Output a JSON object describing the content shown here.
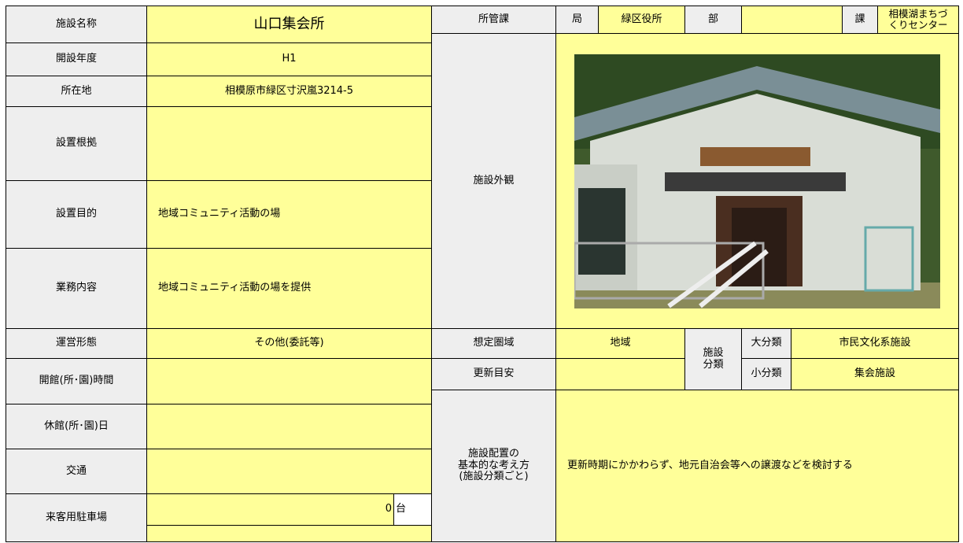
{
  "name": {
    "label": "施設名称",
    "value": "山口集会所"
  },
  "year": {
    "label": "開設年度",
    "value": "H1"
  },
  "address": {
    "label": "所在地",
    "value": "相模原市緑区寸沢嵐3214-5"
  },
  "basis": {
    "label": "設置根拠"
  },
  "purpose": {
    "label": "設置目的",
    "value": "地域コミュニティ活動の場"
  },
  "duties": {
    "label": "業務内容",
    "value": "地域コミュニティ活動の場を提供"
  },
  "operation": {
    "label": "運営形態",
    "value": "その他(委託等)"
  },
  "hours": {
    "label": "開館(所･園)時間"
  },
  "closed": {
    "label": "休館(所･園)日"
  },
  "transport": {
    "label": "交通"
  },
  "parking": {
    "label": "来客用駐車場",
    "count": 0,
    "unit": "台"
  },
  "department": {
    "label": "所管課",
    "bureau_label": "局",
    "bureau": "緑区役所",
    "division_label": "部",
    "section_label": "課",
    "section": [
      "相模湖まちづ",
      "くりセンター"
    ]
  },
  "exterior": {
    "label": "施設外観"
  },
  "area": {
    "label": "想定圏域",
    "value": "地域"
  },
  "renewal": {
    "label": "更新目安"
  },
  "classification": {
    "label": [
      "施設",
      "分類"
    ],
    "major_label": "大分類",
    "major": "市民文化系施設",
    "minor_label": "小分類",
    "minor": "集会施設"
  },
  "policy": {
    "label": [
      "施設配置の",
      "基本的な考え方",
      "(施設分類ごと)"
    ],
    "value": "更新時期にかかわらず、地元自治会等への譲渡などを検討する"
  }
}
